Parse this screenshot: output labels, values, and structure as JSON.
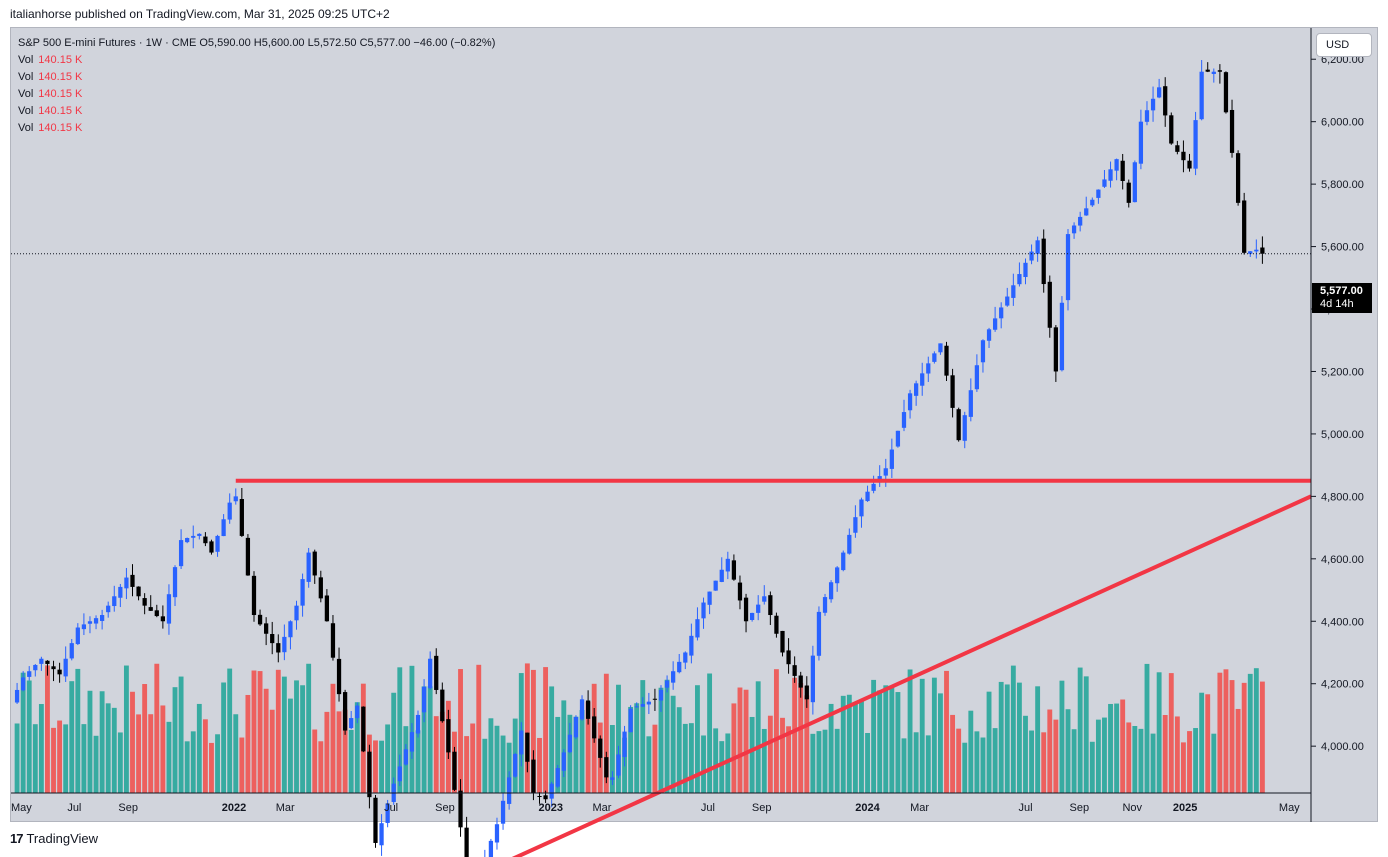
{
  "header": {
    "published_by": "italianhorse published on TradingView.com, Mar 31, 2025 09:25 UTC+2"
  },
  "legend": {
    "symbol": "S&P 500 E-mini Futures · 1W · CME",
    "ohlc": "O5,590.00  H5,600.00  L5,572.50  C5,577.00  −46.00 (−0.82%)",
    "volume_rows": [
      {
        "name": "Vol",
        "value": "140.15 K"
      },
      {
        "name": "Vol",
        "value": "140.15 K"
      },
      {
        "name": "Vol",
        "value": "140.15 K"
      },
      {
        "name": "Vol",
        "value": "140.15 K"
      },
      {
        "name": "Vol",
        "value": "140.15 K"
      }
    ]
  },
  "currency": "USD",
  "price_tag": {
    "price": "5,577.00",
    "countdown": "4d 14h"
  },
  "footer": {
    "brand": "TradingView",
    "logo": "tv-logo-icon"
  },
  "colors": {
    "up": "#2962ff",
    "down": "#000000",
    "vol_up": "#26a69a",
    "vol_down": "#ef5350",
    "trendline": "#f23645",
    "background": "#d1d4dc"
  },
  "chart_data": {
    "type": "candlestick",
    "interval": "1W",
    "ylim": [
      3850,
      6300
    ],
    "y_ticks": [
      4000,
      4200,
      4400,
      4600,
      4800,
      5000,
      5200,
      5400,
      5600,
      5800,
      6000,
      6200
    ],
    "y_tick_labels": [
      "4,000.00",
      "4,200.00",
      "4,400.00",
      "4,600.00",
      "4,800.00",
      "5,000.00",
      "5,200.00",
      "5,400.00",
      "5,600.00",
      "5,800.00",
      "6,000.00",
      "6,200.00"
    ],
    "x_range": [
      "2021-04-19",
      "2025-05-26"
    ],
    "x_ticks": [
      {
        "date": "2021-05-01",
        "label": "May",
        "bold": false
      },
      {
        "date": "2021-07-01",
        "label": "Jul",
        "bold": false
      },
      {
        "date": "2021-09-01",
        "label": "Sep",
        "bold": false
      },
      {
        "date": "2022-01-01",
        "label": "2022",
        "bold": true
      },
      {
        "date": "2022-03-01",
        "label": "Mar",
        "bold": false
      },
      {
        "date": "2022-07-01",
        "label": "Jul",
        "bold": false
      },
      {
        "date": "2022-09-01",
        "label": "Sep",
        "bold": false
      },
      {
        "date": "2023-01-01",
        "label": "2023",
        "bold": true
      },
      {
        "date": "2023-03-01",
        "label": "Mar",
        "bold": false
      },
      {
        "date": "2023-07-01",
        "label": "Jul",
        "bold": false
      },
      {
        "date": "2023-09-01",
        "label": "Sep",
        "bold": false
      },
      {
        "date": "2024-01-01",
        "label": "2024",
        "bold": true
      },
      {
        "date": "2024-03-01",
        "label": "Mar",
        "bold": false
      },
      {
        "date": "2024-07-01",
        "label": "Jul",
        "bold": false
      },
      {
        "date": "2024-09-01",
        "label": "Sep",
        "bold": false
      },
      {
        "date": "2024-11-01",
        "label": "Nov",
        "bold": false
      },
      {
        "date": "2025-01-01",
        "label": "2025",
        "bold": true
      },
      {
        "date": "2025-05-01",
        "label": "May",
        "bold": false
      }
    ],
    "last_price": 5577,
    "price_series": [
      [
        "2021-04-19",
        4140
      ],
      [
        "2021-05-03",
        4220
      ],
      [
        "2021-05-24",
        4280
      ],
      [
        "2021-06-14",
        4230
      ],
      [
        "2021-07-05",
        4380
      ],
      [
        "2021-08-02",
        4420
      ],
      [
        "2021-08-30",
        4540
      ],
      [
        "2021-09-20",
        4450
      ],
      [
        "2021-10-11",
        4400
      ],
      [
        "2021-11-01",
        4660
      ],
      [
        "2021-11-22",
        4680
      ],
      [
        "2021-12-06",
        4620
      ],
      [
        "2021-12-27",
        4780
      ],
      [
        "2022-01-03",
        4800
      ],
      [
        "2022-01-24",
        4420
      ],
      [
        "2022-02-21",
        4300
      ],
      [
        "2022-03-14",
        4450
      ],
      [
        "2022-03-28",
        4620
      ],
      [
        "2022-04-18",
        4400
      ],
      [
        "2022-05-09",
        4050
      ],
      [
        "2022-05-23",
        4130
      ],
      [
        "2022-06-13",
        3690
      ],
      [
        "2022-07-04",
        3880
      ],
      [
        "2022-08-01",
        4100
      ],
      [
        "2022-08-15",
        4280
      ],
      [
        "2022-09-05",
        3980
      ],
      [
        "2022-09-26",
        3620
      ],
      [
        "2022-10-10",
        3590
      ],
      [
        "2022-10-31",
        3750
      ],
      [
        "2022-11-28",
        4050
      ],
      [
        "2022-12-12",
        3850
      ],
      [
        "2022-12-26",
        3830
      ],
      [
        "2023-01-16",
        3980
      ],
      [
        "2023-02-06",
        4150
      ],
      [
        "2023-03-06",
        3900
      ],
      [
        "2023-03-13",
        3900
      ],
      [
        "2023-04-03",
        4120
      ],
      [
        "2023-05-01",
        4150
      ],
      [
        "2023-06-05",
        4300
      ],
      [
        "2023-06-26",
        4460
      ],
      [
        "2023-07-24",
        4600
      ],
      [
        "2023-08-14",
        4400
      ],
      [
        "2023-09-04",
        4480
      ],
      [
        "2023-09-25",
        4300
      ],
      [
        "2023-10-23",
        4150
      ],
      [
        "2023-11-06",
        4430
      ],
      [
        "2023-12-04",
        4620
      ],
      [
        "2023-12-25",
        4790
      ],
      [
        "2024-01-22",
        4890
      ],
      [
        "2024-02-19",
        5130
      ],
      [
        "2024-03-25",
        5290
      ],
      [
        "2024-04-15",
        4980
      ],
      [
        "2024-05-13",
        5300
      ],
      [
        "2024-06-10",
        5440
      ],
      [
        "2024-07-15",
        5620
      ],
      [
        "2024-08-05",
        5200
      ],
      [
        "2024-08-19",
        5640
      ],
      [
        "2024-09-16",
        5750
      ],
      [
        "2024-10-14",
        5880
      ],
      [
        "2024-10-28",
        5740
      ],
      [
        "2024-11-11",
        6000
      ],
      [
        "2024-12-02",
        6110
      ],
      [
        "2024-12-16",
        5930
      ],
      [
        "2025-01-06",
        5850
      ],
      [
        "2025-01-20",
        6160
      ],
      [
        "2025-02-10",
        6160
      ],
      [
        "2025-02-24",
        5900
      ],
      [
        "2025-03-10",
        5580
      ],
      [
        "2025-03-24",
        5590
      ],
      [
        "2025-03-31",
        5577
      ]
    ],
    "trendlines": [
      {
        "name": "horizontal resistance",
        "from": [
          "2022-01-03",
          4850
        ],
        "to": [
          "2025-05-26",
          4850
        ]
      },
      {
        "name": "rising support",
        "from": [
          "2022-10-10",
          3590
        ],
        "to": [
          "2025-05-26",
          4800
        ]
      }
    ]
  }
}
